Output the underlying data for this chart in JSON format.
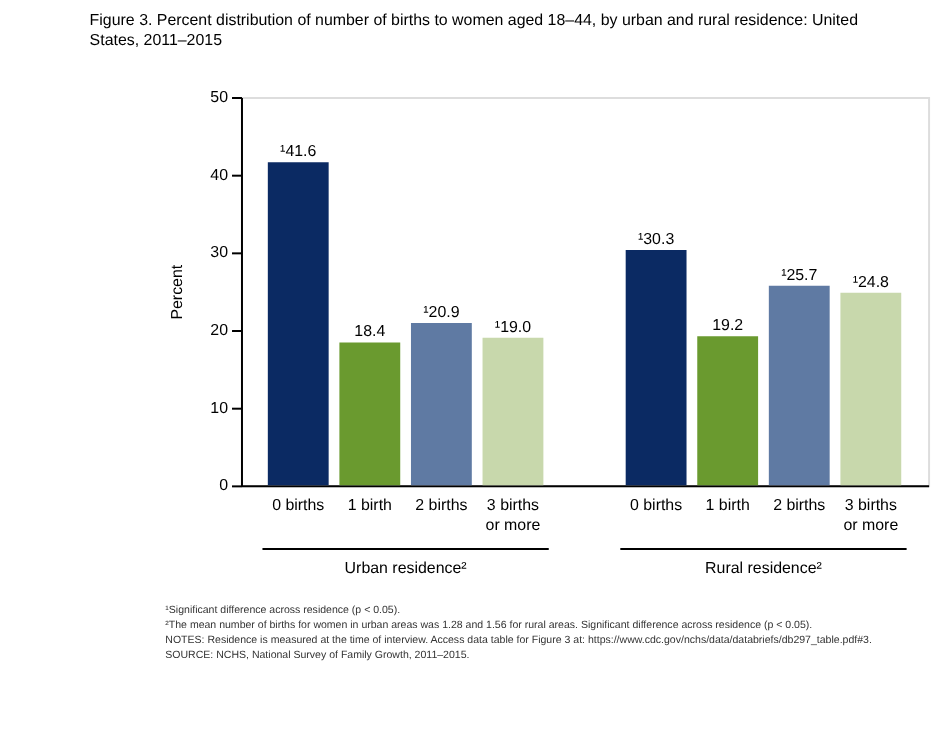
{
  "chart_data": {
    "type": "bar",
    "title": "Figure 3. Percent distribution of number of births to women aged 18–44, by urban and rural residence: United States, 2011–2015",
    "ylabel": "Percent",
    "categories": [
      "0 births",
      "1 birth",
      "2 births",
      "3 births or more",
      "0 births",
      "1 birth",
      "2 births",
      "3 births or more"
    ],
    "values": [
      41.6,
      18.4,
      20.9,
      19.0,
      30.3,
      19.2,
      25.7,
      24.8
    ],
    "colors": [
      "#0b2a63",
      "#6a9a2f",
      "#5f7aa3",
      "#c8d8ac",
      "#0b2a63",
      "#6a9a2f",
      "#5f7aa3",
      "#c8d8ac"
    ],
    "value_labels": [
      "¹41.6",
      "18.4",
      "¹20.9",
      "¹19.0",
      "¹30.3",
      "19.2",
      "¹25.7",
      "¹24.8"
    ],
    "ylim": [
      0,
      50
    ],
    "yticks": [
      0,
      10,
      20,
      30,
      40,
      50
    ],
    "grid": false,
    "annotations": [
      "Urban residence²",
      "Rural residence²",
      "¹Significant difference across residence (p < 0.05).",
      "²The mean number of births for women in urban areas was 1.28 and 1.56 for rural areas. Significant difference across residence (p < 0.05).",
      "NOTES: Residence is measured at the time of interview. Access data table for Figure 3 at: https://www.cdc.gov/nchs/data/databriefs/db297_table.pdf#3.",
      "SOURCE: NCHS, National Survey of Family Growth, 2011–2015."
    ]
  }
}
